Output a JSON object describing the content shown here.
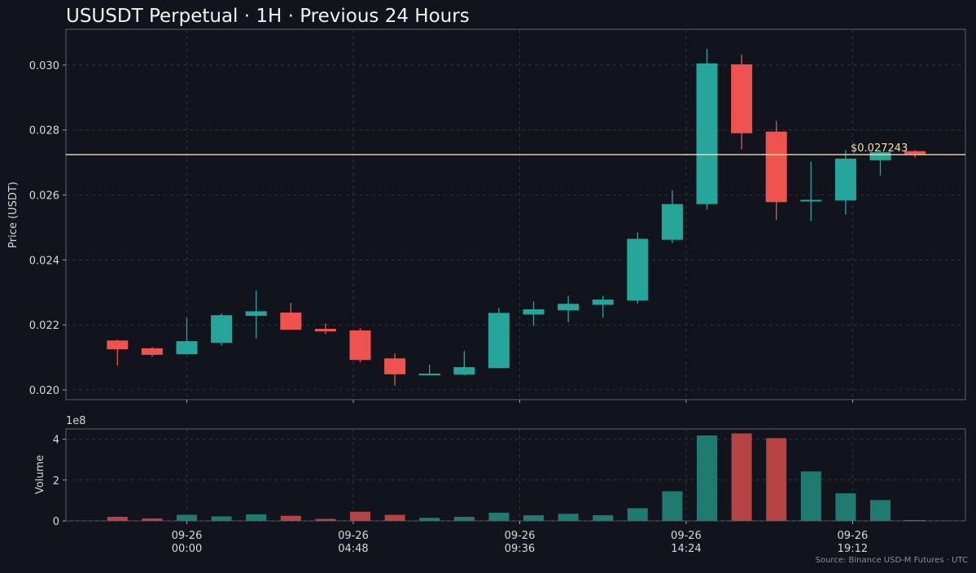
{
  "chart_data": {
    "type": "candlestick",
    "title": "USUSDT Perpetual · 1H · Previous 24 Hours",
    "ylabel": "Price (USDT)",
    "volume_label": "Volume",
    "volume_scale": "1e8",
    "source": "Source: Binance USD-M Futures · UTC",
    "last_price": 0.027243,
    "last_price_label": "$0.027243",
    "price_ylim": [
      0.0197,
      0.0311
    ],
    "volume_ylim": [
      0,
      4.5
    ],
    "price_ticks": [
      "0.020",
      "0.022",
      "0.024",
      "0.026",
      "0.028",
      "0.030"
    ],
    "volume_ticks": [
      "0",
      "2",
      "4"
    ],
    "x_ticks": [
      {
        "t": 1.0,
        "date": "09-26",
        "time": "00:00"
      },
      {
        "t": 5.8,
        "date": "09-26",
        "time": "04:48"
      },
      {
        "t": 10.6,
        "date": "09-26",
        "time": "09:36"
      },
      {
        "t": 15.4,
        "date": "09-26",
        "time": "14:24"
      },
      {
        "t": 20.2,
        "date": "09-26",
        "time": "19:12"
      }
    ],
    "grid": true,
    "colors": {
      "up": "#26a69a",
      "down": "#ef5350",
      "last_line": "#f3dfa2",
      "vol_up": "#1f7a70",
      "vol_down": "#b54343"
    },
    "candles": [
      {
        "t": -1,
        "o": 0.02152,
        "h": 0.02155,
        "l": 0.02075,
        "c": 0.02125,
        "v": 0.2
      },
      {
        "t": 0,
        "o": 0.02128,
        "h": 0.02132,
        "l": 0.02102,
        "c": 0.02108,
        "v": 0.12
      },
      {
        "t": 1,
        "o": 0.0211,
        "h": 0.02222,
        "l": 0.0211,
        "c": 0.0215,
        "v": 0.3
      },
      {
        "t": 2,
        "o": 0.02145,
        "h": 0.02235,
        "l": 0.02137,
        "c": 0.0223,
        "v": 0.22
      },
      {
        "t": 3,
        "o": 0.02228,
        "h": 0.02307,
        "l": 0.02158,
        "c": 0.02242,
        "v": 0.32
      },
      {
        "t": 4,
        "o": 0.02238,
        "h": 0.02268,
        "l": 0.02185,
        "c": 0.02185,
        "v": 0.25
      },
      {
        "t": 5,
        "o": 0.02188,
        "h": 0.02205,
        "l": 0.02172,
        "c": 0.0218,
        "v": 0.1
      },
      {
        "t": 6,
        "o": 0.02183,
        "h": 0.0219,
        "l": 0.02085,
        "c": 0.02092,
        "v": 0.45
      },
      {
        "t": 7,
        "o": 0.02097,
        "h": 0.02112,
        "l": 0.02013,
        "c": 0.02048,
        "v": 0.3
      },
      {
        "t": 8,
        "o": 0.02045,
        "h": 0.02078,
        "l": 0.02045,
        "c": 0.0205,
        "v": 0.15
      },
      {
        "t": 9,
        "o": 0.02047,
        "h": 0.0212,
        "l": 0.02045,
        "c": 0.0207,
        "v": 0.2
      },
      {
        "t": 10,
        "o": 0.02067,
        "h": 0.02252,
        "l": 0.02067,
        "c": 0.02237,
        "v": 0.4
      },
      {
        "t": 11,
        "o": 0.02232,
        "h": 0.02272,
        "l": 0.02197,
        "c": 0.02248,
        "v": 0.28
      },
      {
        "t": 12,
        "o": 0.02245,
        "h": 0.0229,
        "l": 0.02208,
        "c": 0.02265,
        "v": 0.35
      },
      {
        "t": 13,
        "o": 0.02262,
        "h": 0.0229,
        "l": 0.02222,
        "c": 0.02278,
        "v": 0.28
      },
      {
        "t": 14,
        "o": 0.02275,
        "h": 0.02485,
        "l": 0.02265,
        "c": 0.02465,
        "v": 0.62
      },
      {
        "t": 15,
        "o": 0.02462,
        "h": 0.02615,
        "l": 0.02452,
        "c": 0.02572,
        "v": 1.45
      },
      {
        "t": 16,
        "o": 0.02572,
        "h": 0.0305,
        "l": 0.02555,
        "c": 0.03005,
        "v": 4.18
      },
      {
        "t": 17,
        "o": 0.03002,
        "h": 0.03032,
        "l": 0.0274,
        "c": 0.0279,
        "v": 4.28
      },
      {
        "t": 18,
        "o": 0.02795,
        "h": 0.02828,
        "l": 0.02523,
        "c": 0.02578,
        "v": 4.05
      },
      {
        "t": 19,
        "o": 0.0258,
        "h": 0.02703,
        "l": 0.0252,
        "c": 0.02585,
        "v": 2.42
      },
      {
        "t": 20,
        "o": 0.02583,
        "h": 0.02738,
        "l": 0.0254,
        "c": 0.02712,
        "v": 1.35
      },
      {
        "t": 21,
        "o": 0.02707,
        "h": 0.02738,
        "l": 0.0266,
        "c": 0.02732,
        "v": 1.02
      },
      {
        "t": 22,
        "o": 0.02735,
        "h": 0.02738,
        "l": 0.02715,
        "c": 0.02724,
        "v": 0.04
      }
    ]
  }
}
